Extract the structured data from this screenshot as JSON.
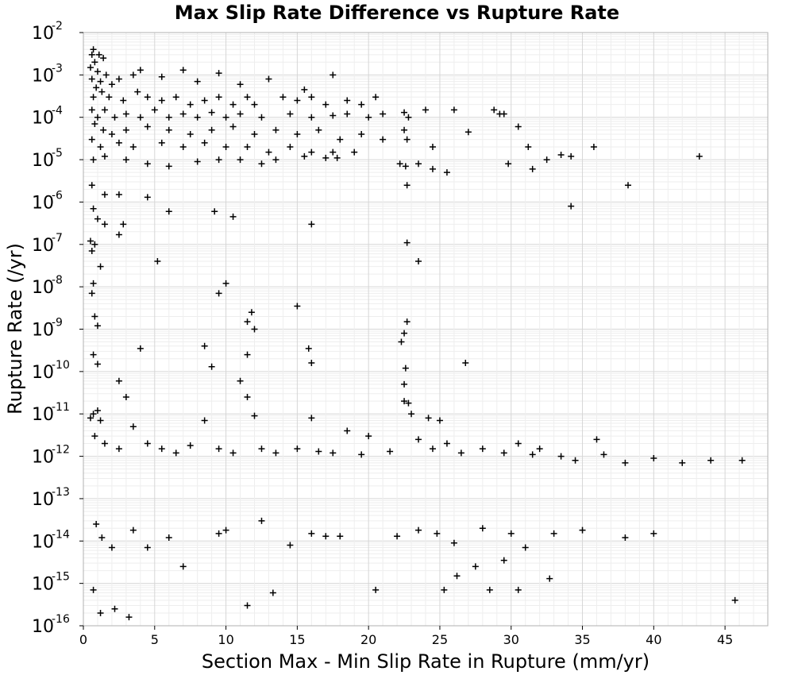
{
  "chart_data": {
    "type": "scatter",
    "title": "Max Slip Rate Difference vs Rupture Rate",
    "xlabel": "Section Max - Min Slip Rate in Rupture (mm/yr)",
    "ylabel": "Rupture Rate (/yr)",
    "x_axis": {
      "scale": "linear",
      "range": [
        0,
        48
      ],
      "tick_labels": [
        "0",
        "5",
        "10",
        "15",
        "20",
        "25",
        "30",
        "35",
        "40",
        "45"
      ]
    },
    "y_axis": {
      "scale": "log",
      "range": [
        1e-16,
        0.01
      ],
      "tick_labels": [
        {
          "base": "10",
          "exp": "-2"
        },
        {
          "base": "10",
          "exp": "-3"
        },
        {
          "base": "10",
          "exp": "-4"
        },
        {
          "base": "10",
          "exp": "-5"
        },
        {
          "base": "10",
          "exp": "-6"
        },
        {
          "base": "10",
          "exp": "-7"
        },
        {
          "base": "10",
          "exp": "-8"
        },
        {
          "base": "10",
          "exp": "-9"
        },
        {
          "base": "10",
          "exp": "-10"
        },
        {
          "base": "10",
          "exp": "-11"
        },
        {
          "base": "10",
          "exp": "-12"
        },
        {
          "base": "10",
          "exp": "-13"
        },
        {
          "base": "10",
          "exp": "-14"
        },
        {
          "base": "10",
          "exp": "-15"
        },
        {
          "base": "10",
          "exp": "-16"
        }
      ]
    },
    "grid": true,
    "marker": "+",
    "marker_color": "#000000",
    "series": [
      {
        "points": [
          [
            0.7,
            0.004
          ],
          [
            0.6,
            0.003
          ],
          [
            1.1,
            0.003
          ],
          [
            1.4,
            0.0025
          ],
          [
            0.8,
            0.002
          ],
          [
            0.5,
            0.0015
          ],
          [
            1.0,
            0.0012
          ],
          [
            1.6,
            0.001
          ],
          [
            0.6,
            0.0008
          ],
          [
            1.2,
            0.0007
          ],
          [
            2.0,
            0.0006
          ],
          [
            2.5,
            0.0008
          ],
          [
            3.5,
            0.001
          ],
          [
            4.0,
            0.0013
          ],
          [
            5.5,
            0.0009
          ],
          [
            7.0,
            0.0013
          ],
          [
            8.0,
            0.0007
          ],
          [
            9.5,
            0.0011
          ],
          [
            11.0,
            0.0006
          ],
          [
            13.0,
            0.0008
          ],
          [
            15.5,
            0.00045
          ],
          [
            17.5,
            0.001
          ],
          [
            0.9,
            0.0005
          ],
          [
            1.3,
            0.0004
          ],
          [
            0.7,
            0.0003
          ],
          [
            1.8,
            0.0003
          ],
          [
            2.8,
            0.00025
          ],
          [
            3.8,
            0.0004
          ],
          [
            4.5,
            0.0003
          ],
          [
            5.5,
            0.00025
          ],
          [
            6.5,
            0.0003
          ],
          [
            7.5,
            0.0002
          ],
          [
            8.5,
            0.00025
          ],
          [
            9.5,
            0.0003
          ],
          [
            10.5,
            0.0002
          ],
          [
            11.5,
            0.0003
          ],
          [
            12.0,
            0.0002
          ],
          [
            14.0,
            0.0003
          ],
          [
            15.0,
            0.00025
          ],
          [
            16.0,
            0.0003
          ],
          [
            17.0,
            0.0002
          ],
          [
            18.5,
            0.00025
          ],
          [
            19.5,
            0.0002
          ],
          [
            20.5,
            0.0003
          ],
          [
            0.6,
            0.00015
          ],
          [
            1.0,
            0.0001
          ],
          [
            1.5,
            0.00015
          ],
          [
            2.2,
            0.0001
          ],
          [
            3.0,
            0.00012
          ],
          [
            4.0,
            0.0001
          ],
          [
            5.0,
            0.00015
          ],
          [
            6.0,
            0.0001
          ],
          [
            7.0,
            0.00012
          ],
          [
            8.0,
            0.0001
          ],
          [
            9.0,
            0.00013
          ],
          [
            10.0,
            0.0001
          ],
          [
            11.0,
            0.00012
          ],
          [
            12.5,
            0.0001
          ],
          [
            14.5,
            0.00012
          ],
          [
            16.0,
            0.0001
          ],
          [
            17.5,
            0.00011
          ],
          [
            18.5,
            0.00012
          ],
          [
            20.0,
            0.0001
          ],
          [
            21.0,
            0.00012
          ],
          [
            22.5,
            0.00013
          ],
          [
            22.8,
            0.0001
          ],
          [
            24.0,
            0.00015
          ],
          [
            26.0,
            0.00015
          ],
          [
            28.8,
            0.00015
          ],
          [
            29.2,
            0.00012
          ],
          [
            0.8,
            7e-05
          ],
          [
            1.4,
            5e-05
          ],
          [
            2.0,
            4e-05
          ],
          [
            3.0,
            5e-05
          ],
          [
            4.5,
            6e-05
          ],
          [
            6.0,
            5e-05
          ],
          [
            7.5,
            4e-05
          ],
          [
            9.0,
            5e-05
          ],
          [
            10.5,
            6e-05
          ],
          [
            12.0,
            4e-05
          ],
          [
            13.5,
            5e-05
          ],
          [
            15.0,
            4e-05
          ],
          [
            16.5,
            5e-05
          ],
          [
            18.0,
            3e-05
          ],
          [
            19.5,
            4e-05
          ],
          [
            21.0,
            3e-05
          ],
          [
            22.5,
            5e-05
          ],
          [
            22.7,
            3e-05
          ],
          [
            24.5,
            2e-05
          ],
          [
            0.6,
            3e-05
          ],
          [
            1.2,
            2e-05
          ],
          [
            2.5,
            2.5e-05
          ],
          [
            3.5,
            2e-05
          ],
          [
            5.5,
            2.5e-05
          ],
          [
            7.0,
            2e-05
          ],
          [
            8.5,
            2.5e-05
          ],
          [
            10.0,
            2e-05
          ],
          [
            11.5,
            2e-05
          ],
          [
            13.0,
            1.5e-05
          ],
          [
            14.5,
            2e-05
          ],
          [
            16.0,
            1.5e-05
          ],
          [
            17.5,
            1.5e-05
          ],
          [
            19.0,
            1.5e-05
          ],
          [
            0.7,
            1e-05
          ],
          [
            1.5,
            1.2e-05
          ],
          [
            3.0,
            1e-05
          ],
          [
            4.5,
            8e-06
          ],
          [
            6.0,
            7e-06
          ],
          [
            8.0,
            9e-06
          ],
          [
            9.5,
            1e-05
          ],
          [
            11.0,
            1e-05
          ],
          [
            12.5,
            8e-06
          ],
          [
            13.5,
            1e-05
          ],
          [
            15.5,
            1.2e-05
          ],
          [
            17.0,
            1.1e-05
          ],
          [
            17.8,
            1.1e-05
          ],
          [
            22.2,
            8e-06
          ],
          [
            22.6,
            7e-06
          ],
          [
            23.5,
            8e-06
          ],
          [
            24.5,
            6e-06
          ],
          [
            25.5,
            5e-06
          ],
          [
            27.0,
            4.5e-05
          ],
          [
            29.5,
            0.00012
          ],
          [
            30.5,
            6e-05
          ],
          [
            31.2,
            2e-05
          ],
          [
            32.5,
            1e-05
          ],
          [
            33.5,
            1.3e-05
          ],
          [
            34.2,
            1.2e-05
          ],
          [
            35.8,
            2e-05
          ],
          [
            38.2,
            2.5e-06
          ],
          [
            43.2,
            1.2e-05
          ],
          [
            34.2,
            8e-07
          ],
          [
            29.8,
            8e-06
          ],
          [
            31.5,
            6e-06
          ],
          [
            22.7,
            2.5e-06
          ],
          [
            0.6,
            2.5e-06
          ],
          [
            1.5,
            1.5e-06
          ],
          [
            2.5,
            1.5e-06
          ],
          [
            4.5,
            1.3e-06
          ],
          [
            0.7,
            7e-07
          ],
          [
            1.0,
            4e-07
          ],
          [
            1.5,
            3e-07
          ],
          [
            2.8,
            3e-07
          ],
          [
            9.2,
            6e-07
          ],
          [
            10.5,
            4.5e-07
          ],
          [
            6.0,
            6e-07
          ],
          [
            16.0,
            3e-07
          ],
          [
            2.5,
            1.7e-07
          ],
          [
            0.5,
            1.2e-07
          ],
          [
            0.8,
            1e-07
          ],
          [
            0.6,
            7e-08
          ],
          [
            1.2,
            3e-08
          ],
          [
            5.2,
            4e-08
          ],
          [
            22.7,
            1.1e-07
          ],
          [
            23.5,
            4e-08
          ],
          [
            0.7,
            1.2e-08
          ],
          [
            0.6,
            7e-09
          ],
          [
            10.0,
            1.2e-08
          ],
          [
            9.5,
            7e-09
          ],
          [
            15.0,
            3.5e-09
          ],
          [
            11.8,
            2.5e-09
          ],
          [
            11.5,
            1.5e-09
          ],
          [
            12.0,
            1e-09
          ],
          [
            0.8,
            2e-09
          ],
          [
            1.0,
            1.2e-09
          ],
          [
            22.7,
            1.5e-09
          ],
          [
            22.5,
            8e-10
          ],
          [
            22.3,
            5e-10
          ],
          [
            0.7,
            2.5e-10
          ],
          [
            1.0,
            1.5e-10
          ],
          [
            4.0,
            3.5e-10
          ],
          [
            8.5,
            4e-10
          ],
          [
            9.0,
            1.3e-10
          ],
          [
            11.5,
            2.5e-10
          ],
          [
            15.8,
            3.5e-10
          ],
          [
            16.0,
            1.6e-10
          ],
          [
            22.6,
            1.2e-10
          ],
          [
            26.8,
            1.6e-10
          ],
          [
            2.5,
            6e-11
          ],
          [
            3.0,
            2.5e-11
          ],
          [
            11.0,
            6e-11
          ],
          [
            11.5,
            2.5e-11
          ],
          [
            22.5,
            5e-11
          ],
          [
            22.8,
            1.8e-11
          ],
          [
            0.7,
            1e-11
          ],
          [
            1.0,
            1.2e-11
          ],
          [
            0.5,
            8e-12
          ],
          [
            1.2,
            7e-12
          ],
          [
            3.5,
            5e-12
          ],
          [
            8.5,
            7e-12
          ],
          [
            12.0,
            9e-12
          ],
          [
            16.0,
            8e-12
          ],
          [
            22.5,
            2e-11
          ],
          [
            23.0,
            1e-11
          ],
          [
            24.2,
            8e-12
          ],
          [
            25.0,
            7e-12
          ],
          [
            18.5,
            4e-12
          ],
          [
            20.0,
            3e-12
          ],
          [
            23.5,
            2.5e-12
          ],
          [
            25.5,
            2e-12
          ],
          [
            28.0,
            1.5e-12
          ],
          [
            30.5,
            2e-12
          ],
          [
            32.0,
            1.5e-12
          ],
          [
            33.5,
            1e-12
          ],
          [
            34.5,
            8e-13
          ],
          [
            36.5,
            1.1e-12
          ],
          [
            40.0,
            9e-13
          ],
          [
            44.0,
            8e-13
          ],
          [
            46.2,
            8e-13
          ],
          [
            0.8,
            3e-12
          ],
          [
            1.5,
            2e-12
          ],
          [
            2.5,
            1.5e-12
          ],
          [
            4.5,
            2e-12
          ],
          [
            5.5,
            1.5e-12
          ],
          [
            6.5,
            1.2e-12
          ],
          [
            7.5,
            1.8e-12
          ],
          [
            9.5,
            1.5e-12
          ],
          [
            10.5,
            1.2e-12
          ],
          [
            12.5,
            1.5e-12
          ],
          [
            13.5,
            1.2e-12
          ],
          [
            15.0,
            1.5e-12
          ],
          [
            16.5,
            1.3e-12
          ],
          [
            17.5,
            1.2e-12
          ],
          [
            19.5,
            1.1e-12
          ],
          [
            21.5,
            1.3e-12
          ],
          [
            24.5,
            1.5e-12
          ],
          [
            26.5,
            1.2e-12
          ],
          [
            29.5,
            1.2e-12
          ],
          [
            31.5,
            1.1e-12
          ],
          [
            36.0,
            2.5e-12
          ],
          [
            38.0,
            7e-13
          ],
          [
            42.0,
            7e-13
          ],
          [
            0.9,
            2.5e-14
          ],
          [
            1.3,
            1.2e-14
          ],
          [
            2.0,
            7e-15
          ],
          [
            3.5,
            1.8e-14
          ],
          [
            4.5,
            7e-15
          ],
          [
            7.0,
            2.5e-15
          ],
          [
            9.5,
            1.5e-14
          ],
          [
            11.5,
            3e-16
          ],
          [
            13.3,
            6e-16
          ],
          [
            16.0,
            1.5e-14
          ],
          [
            18.0,
            1.3e-14
          ],
          [
            20.5,
            7e-16
          ],
          [
            23.5,
            1.8e-14
          ],
          [
            24.8,
            1.5e-14
          ],
          [
            25.3,
            7e-16
          ],
          [
            26.2,
            1.5e-15
          ],
          [
            27.5,
            2.5e-15
          ],
          [
            28.5,
            7e-16
          ],
          [
            29.5,
            3.5e-15
          ],
          [
            30.5,
            7e-16
          ],
          [
            31.0,
            7e-15
          ],
          [
            32.7,
            1.3e-15
          ],
          [
            38.0,
            1.2e-14
          ],
          [
            45.7,
            4e-16
          ],
          [
            0.7,
            7e-16
          ],
          [
            1.2,
            2e-16
          ],
          [
            2.2,
            2.5e-16
          ],
          [
            3.2,
            1.6e-16
          ],
          [
            6.0,
            1.2e-14
          ],
          [
            10.0,
            1.8e-14
          ],
          [
            12.5,
            3e-14
          ],
          [
            14.5,
            8e-15
          ],
          [
            17.0,
            1.3e-14
          ],
          [
            22.0,
            1.3e-14
          ],
          [
            26.0,
            9e-15
          ],
          [
            28.0,
            2e-14
          ],
          [
            30.0,
            1.5e-14
          ],
          [
            33.0,
            1.5e-14
          ],
          [
            35.0,
            1.8e-14
          ],
          [
            40.0,
            1.5e-14
          ]
        ]
      }
    ]
  }
}
